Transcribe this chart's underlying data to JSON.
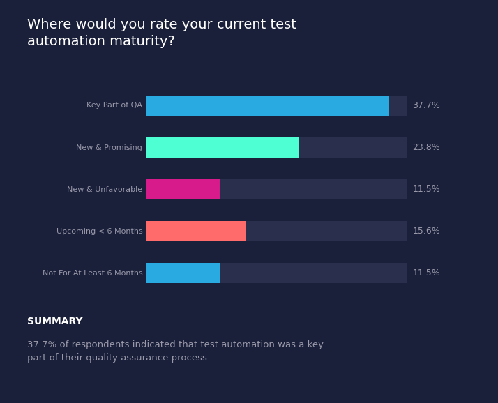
{
  "title": "Where would you rate your current test\nautomation maturity?",
  "categories": [
    "Key Part of QA",
    "New & Promising",
    "New & Unfavorable",
    "Upcoming < 6 Months",
    "Not For At Least 6 Months"
  ],
  "values": [
    37.7,
    23.8,
    11.5,
    15.6,
    11.5
  ],
  "display_max": 40.5,
  "bar_colors": [
    "#29ABE2",
    "#4DFFD2",
    "#D81B8A",
    "#FF6B6B",
    "#29ABE2"
  ],
  "bg_bar_color": "#2A2F4E",
  "background_color": "#1A1F3A",
  "text_color": "#9999AA",
  "title_color": "#FFFFFF",
  "label_color": "#9999AA",
  "value_color": "#9999AA",
  "summary_title": "SUMMARY",
  "summary_text": "37.7% of respondents indicated that test automation was a key\npart of their quality assurance process.",
  "bar_height": 0.48,
  "label_fontsize": 8.0,
  "value_fontsize": 9.0,
  "title_fontsize": 14.0,
  "summary_title_fontsize": 10.0,
  "summary_text_fontsize": 9.5
}
